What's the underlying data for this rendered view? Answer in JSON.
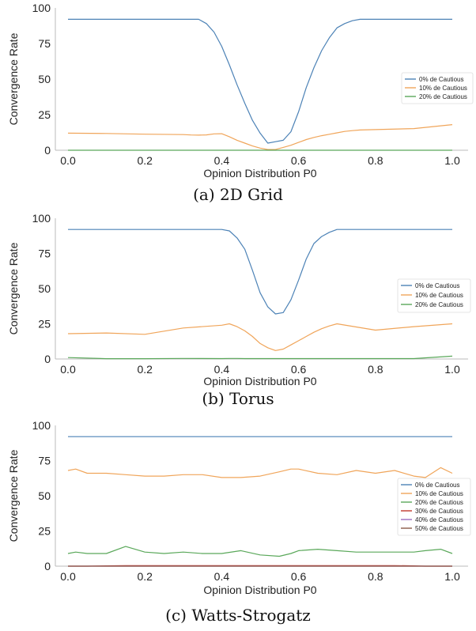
{
  "chart_data": [
    {
      "type": "line",
      "caption": "(a) 2D Grid",
      "xlabel": "Opinion Distribution P0",
      "ylabel": "Convergence Rate",
      "xlim": [
        0.0,
        1.0
      ],
      "ylim": [
        0,
        100
      ],
      "xticks": [
        "0.0",
        "0.2",
        "0.4",
        "0.6",
        "0.8",
        "1.0"
      ],
      "yticks": [
        "0",
        "25",
        "50",
        "75",
        "100"
      ],
      "legend": "center-right",
      "x": [
        0.0,
        0.1,
        0.2,
        0.3,
        0.32,
        0.34,
        0.36,
        0.38,
        0.4,
        0.42,
        0.44,
        0.46,
        0.48,
        0.5,
        0.52,
        0.54,
        0.56,
        0.58,
        0.6,
        0.62,
        0.64,
        0.66,
        0.68,
        0.7,
        0.72,
        0.74,
        0.76,
        0.78,
        0.8,
        0.9,
        1.0
      ],
      "series": [
        {
          "name": "0% de Cautious",
          "color": "#4c82b6",
          "values": [
            92,
            92,
            92,
            92,
            92,
            92,
            89,
            83,
            73,
            60,
            46,
            33,
            21,
            12,
            5,
            6,
            7,
            13,
            27,
            44,
            58,
            70,
            79,
            86,
            89,
            91,
            92,
            92,
            92,
            92,
            92
          ]
        },
        {
          "name": "10% de Cautious",
          "color": "#f0a55a",
          "values": [
            12,
            11.8,
            11.3,
            11,
            10.7,
            10.6,
            10.8,
            11.5,
            11.6,
            9.5,
            7,
            5,
            3,
            1.5,
            0.5,
            0.5,
            2,
            3.5,
            5.5,
            7.5,
            9,
            10.2,
            11.2,
            12.2,
            13.2,
            13.8,
            14.2,
            14.4,
            14.5,
            15.2,
            18
          ]
        },
        {
          "name": "20% de Cautious",
          "color": "#5aa85a",
          "values": [
            0,
            0,
            0,
            0,
            0,
            0,
            0,
            0,
            0,
            0,
            0,
            0,
            0,
            0,
            0,
            0,
            0,
            0,
            0,
            0,
            0,
            0,
            0,
            0,
            0,
            0,
            0,
            0,
            0,
            0,
            0
          ]
        }
      ]
    },
    {
      "type": "line",
      "caption": "(b) Torus",
      "xlabel": "Opinion Distribution P0",
      "ylabel": "Convergence Rate",
      "xlim": [
        0.0,
        1.0
      ],
      "ylim": [
        0,
        100
      ],
      "xticks": [
        "0.0",
        "0.2",
        "0.4",
        "0.6",
        "0.8",
        "1.0"
      ],
      "yticks": [
        "0",
        "25",
        "50",
        "75",
        "100"
      ],
      "legend": "center-right",
      "x": [
        0.0,
        0.1,
        0.2,
        0.3,
        0.4,
        0.42,
        0.44,
        0.46,
        0.48,
        0.5,
        0.52,
        0.54,
        0.56,
        0.58,
        0.6,
        0.62,
        0.64,
        0.66,
        0.68,
        0.7,
        0.8,
        0.9,
        1.0
      ],
      "series": [
        {
          "name": "0% de Cautious",
          "color": "#4c82b6",
          "values": [
            92,
            92,
            92,
            92,
            92,
            91,
            86,
            78,
            63,
            47,
            37,
            32,
            33,
            42,
            56,
            71,
            82,
            87,
            90,
            92,
            92,
            92,
            92
          ]
        },
        {
          "name": "10% de Cautious",
          "color": "#f0a55a",
          "values": [
            18,
            18.5,
            17.5,
            22,
            24,
            25,
            23,
            20,
            16,
            11,
            8,
            6,
            7,
            10,
            13,
            16,
            19,
            21.5,
            23.5,
            25,
            20.5,
            23,
            25
          ]
        },
        {
          "name": "20% de Cautious",
          "color": "#5aa85a",
          "values": [
            1,
            0.2,
            0.2,
            0.4,
            0.3,
            0.4,
            0.4,
            0.3,
            0.3,
            0.3,
            0.3,
            0.3,
            0.3,
            0.3,
            0.3,
            0.3,
            0.3,
            0.3,
            0.3,
            0.3,
            0.3,
            0.3,
            2
          ]
        }
      ]
    },
    {
      "type": "line",
      "caption": "(c) Watts-Strogatz",
      "xlabel": "Opinion Distribution P0",
      "ylabel": "Convergence Rate",
      "xlim": [
        0.0,
        1.0
      ],
      "ylim": [
        0,
        100
      ],
      "xticks": [
        "0.0",
        "0.2",
        "0.4",
        "0.6",
        "0.8",
        "1.0"
      ],
      "yticks": [
        "0",
        "25",
        "50",
        "75",
        "100"
      ],
      "legend": "center-right",
      "x": [
        0.0,
        0.02,
        0.05,
        0.1,
        0.15,
        0.2,
        0.25,
        0.3,
        0.35,
        0.4,
        0.45,
        0.5,
        0.55,
        0.58,
        0.6,
        0.65,
        0.7,
        0.75,
        0.8,
        0.85,
        0.9,
        0.93,
        0.97,
        1.0
      ],
      "series": [
        {
          "name": "0% de Cautious",
          "color": "#4c82b6",
          "values": [
            92,
            92,
            92,
            92,
            92,
            92,
            92,
            92,
            92,
            92,
            92,
            92,
            92,
            92,
            92,
            92,
            92,
            92,
            92,
            92,
            92,
            92,
            92,
            92
          ]
        },
        {
          "name": "10% de Cautious",
          "color": "#f0a55a",
          "values": [
            68,
            69,
            66,
            66,
            65,
            64,
            64,
            65,
            65,
            63,
            63,
            64,
            67,
            69,
            69,
            66,
            65,
            68,
            66,
            68,
            64,
            63,
            70,
            66
          ]
        },
        {
          "name": "20% de Cautious",
          "color": "#5aa85a",
          "values": [
            9,
            10,
            9,
            9,
            14,
            10,
            9,
            10,
            9,
            9,
            11,
            8,
            7,
            9,
            11,
            12,
            11,
            10,
            10,
            10,
            10,
            11,
            12,
            9
          ]
        },
        {
          "name": "30% de Cautious",
          "color": "#c0392b",
          "values": [
            0,
            0,
            0,
            0.2,
            0.4,
            0.4,
            0.4,
            0.4,
            0.4,
            0.4,
            0.4,
            0.4,
            0.4,
            0.4,
            0.4,
            0.4,
            0.4,
            0.4,
            0.4,
            0.4,
            0.2,
            0,
            0,
            0
          ]
        },
        {
          "name": "40% de Cautious",
          "color": "#9b6bc0",
          "values": [
            0,
            0,
            0,
            0,
            0,
            0,
            0,
            0,
            0,
            0,
            0,
            0,
            0,
            0,
            0,
            0,
            0,
            0,
            0,
            0,
            0,
            0,
            0,
            0
          ]
        },
        {
          "name": "50% de Cautious",
          "color": "#8c5a48",
          "values": [
            0,
            0,
            0,
            0,
            0,
            0,
            0,
            0,
            0,
            0,
            0,
            0,
            0,
            0,
            0,
            0,
            0,
            0,
            0,
            0,
            0,
            0,
            0,
            0
          ]
        }
      ]
    }
  ]
}
